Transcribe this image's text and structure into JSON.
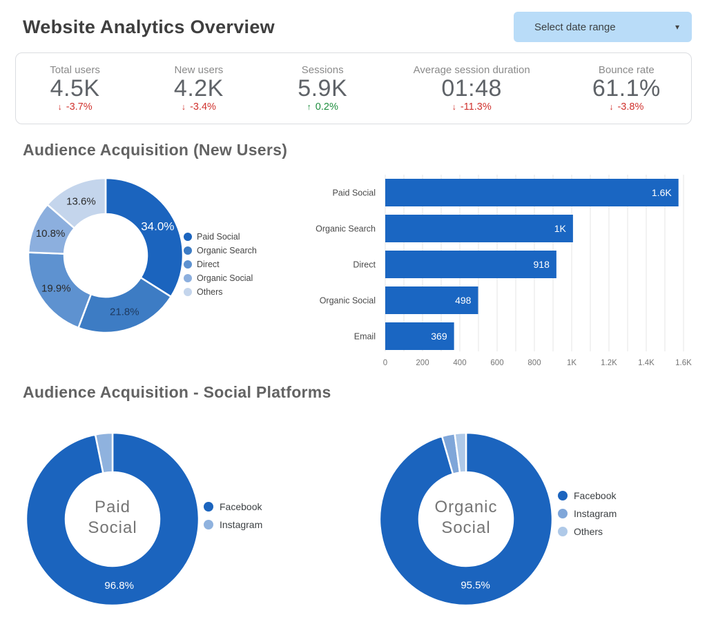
{
  "header": {
    "title": "Website Analytics Overview",
    "date_range_label": "Select date range"
  },
  "kpis": [
    {
      "label": "Total users",
      "value": "4.5K",
      "delta": "-3.7%",
      "trend": "down"
    },
    {
      "label": "New users",
      "value": "4.2K",
      "delta": "-3.4%",
      "trend": "down"
    },
    {
      "label": "Sessions",
      "value": "5.9K",
      "delta": "0.2%",
      "trend": "up"
    },
    {
      "label": "Average session duration",
      "value": "01:48",
      "delta": "-11.3%",
      "trend": "down"
    },
    {
      "label": "Bounce rate",
      "value": "61.1%",
      "delta": "-3.8%",
      "trend": "down"
    }
  ],
  "sections": {
    "acquisition": {
      "title": "Audience Acquisition (New Users)"
    },
    "social": {
      "title": "Audience Acquisition - Social Platforms"
    }
  },
  "colors": {
    "primary_blue": "#1B64BE",
    "negative": "#d0312d",
    "positive": "#1e8e3e",
    "date_button_bg": "#b9dcf8"
  },
  "chart_data": [
    {
      "id": "channels_donut",
      "type": "pie",
      "title": "Audience Acquisition (New Users) - channel share",
      "labels": [
        "Paid Social",
        "Organic Search",
        "Direct",
        "Organic Social",
        "Others"
      ],
      "values": [
        34.0,
        21.8,
        19.9,
        10.8,
        13.6
      ],
      "unit": "%",
      "colors": [
        "#1B64BE",
        "#3D7CC4",
        "#5E92D0",
        "#8CAFDE",
        "#C4D5EC"
      ],
      "legend_position": "right",
      "slice_labels": [
        {
          "text": "34.0%",
          "color": "#ffffff",
          "size": 17
        },
        {
          "text": "21.8%",
          "color": "#1e3a5f",
          "size": 15
        },
        {
          "text": "19.9%",
          "color": "#2a2a2a",
          "size": 15
        },
        {
          "text": "10.8%",
          "color": "#2a2a2a",
          "size": 15
        },
        {
          "text": "13.6%",
          "color": "#2a2a2a",
          "size": 15
        }
      ]
    },
    {
      "id": "channels_bar",
      "type": "bar",
      "orientation": "horizontal",
      "title": "Audience Acquisition (New Users) - by channel",
      "categories": [
        "Paid Social",
        "Organic Search",
        "Direct",
        "Organic Social",
        "Email"
      ],
      "values": [
        1573,
        1007,
        918,
        498,
        369
      ],
      "value_labels": [
        "1.6K",
        "1K",
        "918",
        "498",
        "369"
      ],
      "bar_color": "#1A66C2",
      "xlim": [
        0,
        1600
      ],
      "grid_minor_step": 100,
      "xticks": [
        {
          "v": 0,
          "label": "0"
        },
        {
          "v": 200,
          "label": "200"
        },
        {
          "v": 400,
          "label": "400"
        },
        {
          "v": 600,
          "label": "600"
        },
        {
          "v": 800,
          "label": "800"
        },
        {
          "v": 1000,
          "label": "1K"
        },
        {
          "v": 1200,
          "label": "1.2K"
        },
        {
          "v": 1400,
          "label": "1.4K"
        },
        {
          "v": 1600,
          "label": "1.6K"
        }
      ]
    },
    {
      "id": "paid_social_donut",
      "type": "pie",
      "title": "Paid Social platforms",
      "labels": [
        "Facebook",
        "Instagram"
      ],
      "values": [
        96.8,
        3.2
      ],
      "unit": "%",
      "colors": [
        "#1B64BE",
        "#8FB2DE"
      ],
      "center_label": [
        "Paid",
        "Social"
      ],
      "legend_position": "right",
      "slice_labels": [
        {
          "text": "96.8%",
          "color": "#ffffff",
          "size": 15
        },
        null
      ]
    },
    {
      "id": "organic_social_donut",
      "type": "pie",
      "title": "Organic Social platforms",
      "labels": [
        "Facebook",
        "Instagram",
        "Others"
      ],
      "values": [
        95.5,
        2.4,
        2.1
      ],
      "unit": "%",
      "colors": [
        "#1B64BE",
        "#7FA6D9",
        "#AFC9E8"
      ],
      "center_label": [
        "Organic",
        "Social"
      ],
      "legend_position": "right",
      "slice_labels": [
        {
          "text": "95.5%",
          "color": "#ffffff",
          "size": 15
        },
        null,
        null
      ]
    }
  ]
}
